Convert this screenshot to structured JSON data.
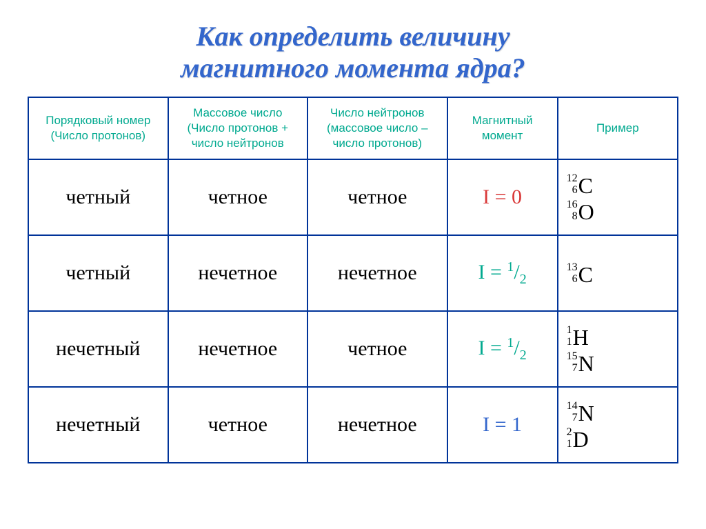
{
  "title_line1": "Как определить величину",
  "title_line2": "магнитного момента ядра?",
  "colors": {
    "title": "#3366cc",
    "header_text": "#00a98f",
    "border": "#003399",
    "moment_red": "#d93838",
    "moment_teal": "#00a98f",
    "moment_blue": "#3366cc",
    "body_text": "#000000",
    "background": "#ffffff"
  },
  "typography": {
    "title_fontsize": 40,
    "title_style": "italic bold",
    "header_fontsize": 17,
    "header_family": "Arial",
    "cell_fontsize": 30,
    "example_fontsize": 28,
    "isotope_elem_fontsize": 32,
    "isotope_supsub_fontsize": 16
  },
  "table": {
    "type": "table",
    "column_widths_pct": [
      21.5,
      21.5,
      21.5,
      17,
      18.5
    ],
    "headers": [
      "Порядковый номер\n(Число протонов)",
      "Массовое число\n(Число протонов +\nчисло нейтронов",
      "Число нейтронов\n(массовое число –\nчисло протонов)",
      "Магнитный\nмомент",
      "Пример"
    ],
    "rows": [
      {
        "col1": "четный",
        "col2": "четное",
        "col3": "четное",
        "moment": {
          "text": "I = 0",
          "color": "#d93838"
        },
        "examples": [
          {
            "mass": "12",
            "z": "6",
            "elem": "C"
          },
          {
            "mass": "16",
            "z": "8",
            "elem": "O"
          }
        ]
      },
      {
        "col1": "четный",
        "col2": "нечетное",
        "col3": "нечетное",
        "moment": {
          "prefix": "I = ",
          "num": "1",
          "den": "2",
          "color": "#00a98f"
        },
        "examples": [
          {
            "mass": "13",
            "z": "6",
            "elem": "C"
          }
        ]
      },
      {
        "col1": "нечетный",
        "col2": "нечетное",
        "col3": "четное",
        "moment": {
          "prefix": "I = ",
          "num": "1",
          "den": "2",
          "color": "#00a98f"
        },
        "examples": [
          {
            "mass": "1",
            "z": "1",
            "elem": "H"
          },
          {
            "mass": "15",
            "z": "7",
            "elem": "N"
          }
        ]
      },
      {
        "col1": "нечетный",
        "col2": "четное",
        "col3": "нечетное",
        "moment": {
          "text": "I = 1",
          "color": "#3366cc"
        },
        "examples": [
          {
            "mass": "14",
            "z": "7",
            "elem": "N"
          },
          {
            "mass": "2",
            "z": "1",
            "elem": "D"
          }
        ]
      }
    ]
  }
}
